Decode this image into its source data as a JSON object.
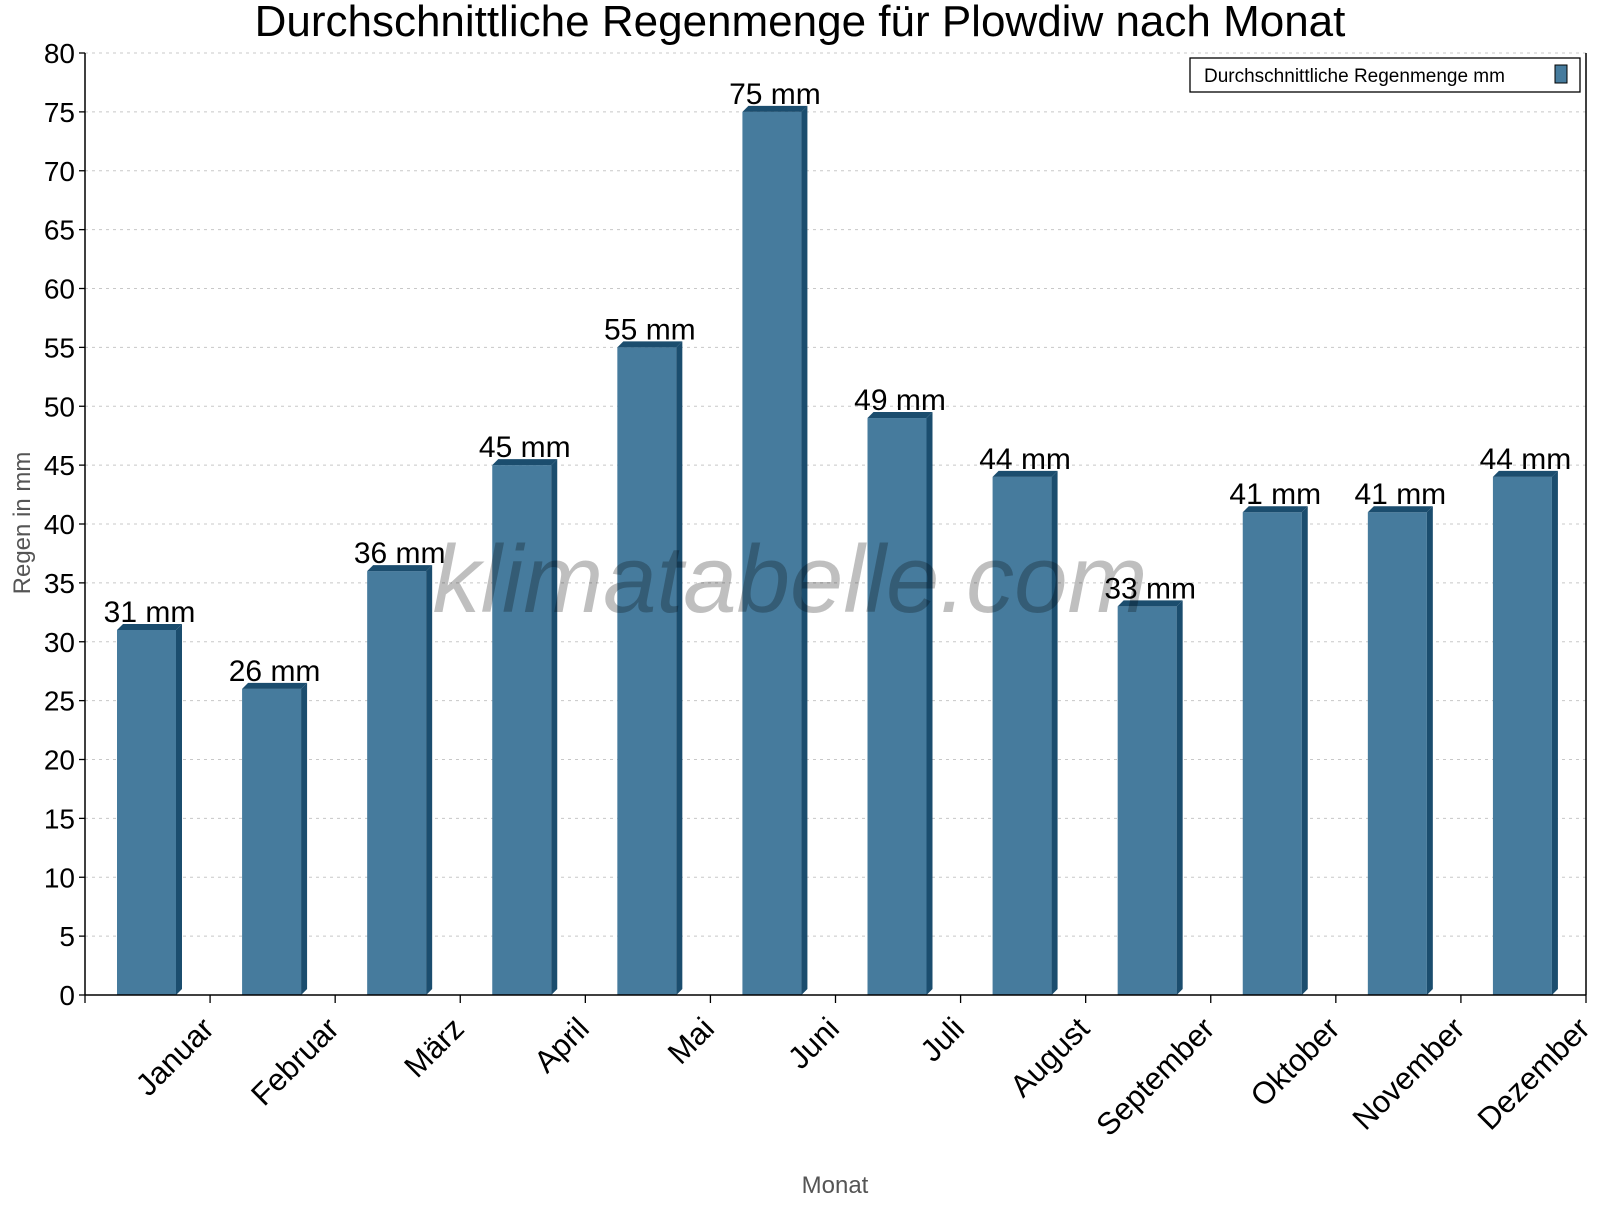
{
  "chart_data": {
    "type": "bar",
    "title": "Durchschnittliche Regenmenge für Plowdiw nach Monat",
    "xlabel": "Monat",
    "ylabel": "Regen in mm",
    "categories": [
      "Januar",
      "Februar",
      "März",
      "April",
      "Mai",
      "Juni",
      "Juli",
      "August",
      "September",
      "Oktober",
      "November",
      "Dezember"
    ],
    "series": [
      {
        "name": "Durchschnittliche Regenmenge mm",
        "values": [
          31,
          26,
          36,
          45,
          55,
          75,
          49,
          44,
          33,
          41,
          41,
          44
        ]
      }
    ],
    "data_label_suffix": " mm",
    "ylim": [
      0,
      80
    ],
    "yticks": [
      0,
      5,
      10,
      15,
      20,
      25,
      30,
      35,
      40,
      45,
      50,
      55,
      60,
      65,
      70,
      75,
      80
    ],
    "grid": true,
    "legend": "top-right",
    "colors": {
      "bar": "#467b9d",
      "bar_dark": "#1b4d6e",
      "grid": "#c8c8c8"
    },
    "watermark": "klimatabelle.com"
  }
}
